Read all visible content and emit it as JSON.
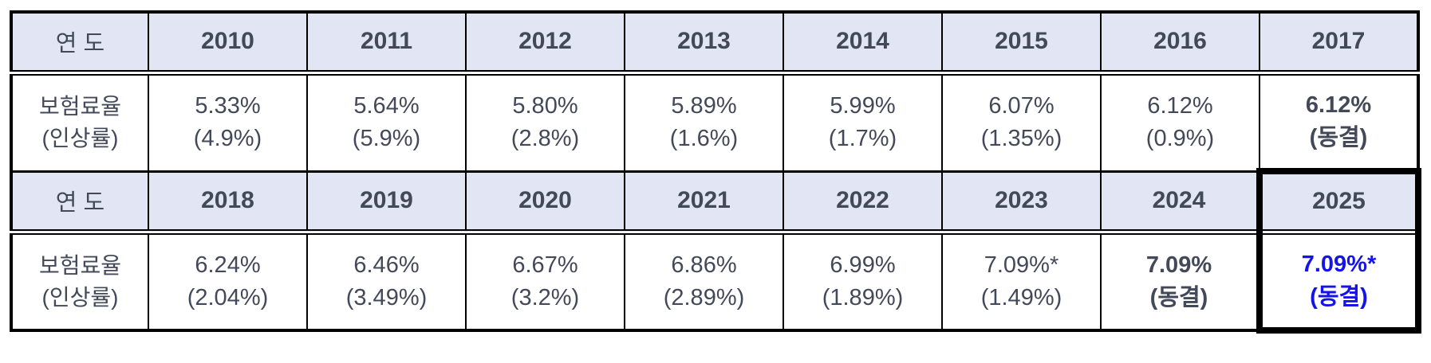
{
  "colors": {
    "header_bg": "#e1e5f4",
    "text": "#434959",
    "highlight_text": "#1414e8",
    "border": "#000000"
  },
  "table_semantics": {
    "description_row_header": "year",
    "description_data_row": "insurance premium rate (increase rate)"
  },
  "row1": {
    "label": "연 도",
    "years": [
      "2010",
      "2011",
      "2012",
      "2013",
      "2014",
      "2015",
      "2016",
      "2017"
    ]
  },
  "row2": {
    "label1": "보험료율",
    "label2": "(인상률)",
    "cells": [
      {
        "rate": "5.33%",
        "change": "(4.9%)"
      },
      {
        "rate": "5.64%",
        "change": "(5.9%)"
      },
      {
        "rate": "5.80%",
        "change": "(2.8%)"
      },
      {
        "rate": "5.89%",
        "change": "(1.6%)"
      },
      {
        "rate": "5.99%",
        "change": "(1.7%)"
      },
      {
        "rate": "6.07%",
        "change": "(1.35%)"
      },
      {
        "rate": "6.12%",
        "change": "(0.9%)"
      },
      {
        "rate": "6.12%",
        "change": "(동결)"
      }
    ]
  },
  "row3": {
    "label": "연 도",
    "years": [
      "2018",
      "2019",
      "2020",
      "2021",
      "2022",
      "2023",
      "2024",
      "2025"
    ]
  },
  "row4": {
    "label1": "보험료율",
    "label2": "(인상률)",
    "cells": [
      {
        "rate": "6.24%",
        "change": "(2.04%)"
      },
      {
        "rate": "6.46%",
        "change": "(3.49%)"
      },
      {
        "rate": "6.67%",
        "change": "(3.2%)"
      },
      {
        "rate": "6.86%",
        "change": "(2.89%)"
      },
      {
        "rate": "6.99%",
        "change": "(1.89%)"
      },
      {
        "rate": "7.09%*",
        "change": "(1.49%)"
      },
      {
        "rate": "7.09%",
        "change": "(동결)"
      },
      {
        "rate": "7.09%*",
        "change": "(동결)"
      }
    ]
  }
}
